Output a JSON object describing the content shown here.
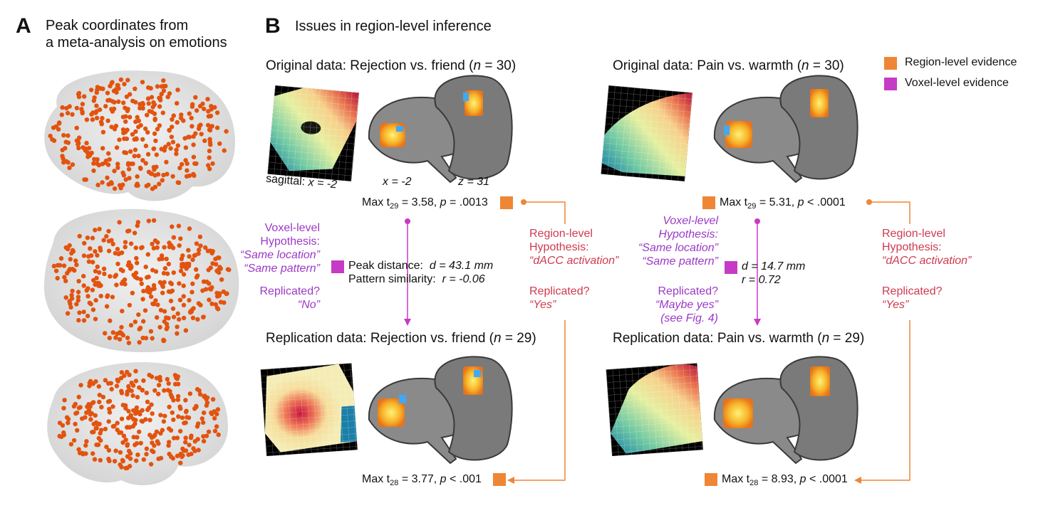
{
  "panel_a": {
    "letter": "A",
    "title_line1": "Peak coordinates from",
    "title_line2": "a meta-analysis on emotions"
  },
  "panel_b": {
    "letter": "B",
    "title": "Issues in region-level inference"
  },
  "legend": {
    "region": "Region-level evidence",
    "voxel": "Voxel-level evidence"
  },
  "left": {
    "original_title_pre": "Original data: Rejection vs. friend (",
    "original_title_n": "n",
    "original_title_post": " = 30)",
    "sagittal_label": "sagittal:",
    "sagittal_value": "x = -2",
    "x_label": "x = -2",
    "z_label": "z = 31",
    "orig_max_pre": "Max t",
    "orig_max_sub": "29",
    "orig_max_mid": " = 3.58, ",
    "orig_max_p": "p",
    "orig_max_post": " = .0013",
    "voxel_hyp_1": "Voxel-level",
    "voxel_hyp_2": "Hypothesis:",
    "voxel_hyp_3": "“Same location”",
    "voxel_hyp_4": "“Same pattern”",
    "replicated_q": "Replicated?",
    "voxel_answer": "“No”",
    "peak_distance_label": "Peak distance:",
    "peak_distance_value": "d = 43.1 mm",
    "pattern_sim_label": "Pattern similarity:",
    "pattern_sim_value": "r = -0.06",
    "region_hyp_1": "Region-level",
    "region_hyp_2": "Hypothesis:",
    "region_hyp_3": "“dACC activation”",
    "region_replicated_q": "Replicated?",
    "region_answer": "“Yes”",
    "replication_title_pre": "Replication data: Rejection vs. friend (",
    "replication_title_n": "n",
    "replication_title_post": " = 29)",
    "rep_max_pre": "Max t",
    "rep_max_sub": "28",
    "rep_max_mid": " = 3.77, ",
    "rep_max_p": "p",
    "rep_max_post": " < .001"
  },
  "right": {
    "original_title_pre": "Original data: Pain vs. warmth (",
    "original_title_n": "n",
    "original_title_post": " = 30)",
    "orig_max_pre": "Max t",
    "orig_max_sub": "29",
    "orig_max_mid": " = 5.31, ",
    "orig_max_p": "p",
    "orig_max_post": " < .0001",
    "voxel_hyp_1": "Voxel-level",
    "voxel_hyp_2": "Hypothesis:",
    "voxel_hyp_3": "“Same location”",
    "voxel_hyp_4": "“Same pattern”",
    "replicated_q": "Replicated?",
    "voxel_answer_1": "“Maybe yes”",
    "voxel_answer_2": "(see Fig. 4)",
    "d_value": "d = 14.7 mm",
    "r_value": "r = 0.72",
    "region_hyp_1": "Region-level",
    "region_hyp_2": "Hypothesis:",
    "region_hyp_3": "“dACC activation”",
    "region_replicated_q": "Replicated?",
    "region_answer": "“Yes”",
    "replication_title_pre": "Replication data: Pain vs. warmth (",
    "replication_title_n": "n",
    "replication_title_post": " = 29)",
    "rep_max_pre": "Max t",
    "rep_max_sub": "28",
    "rep_max_mid": " = 8.93, ",
    "rep_max_p": "p",
    "rep_max_post": " < .0001"
  },
  "colors": {
    "region": "#ee8636",
    "voxel": "#c63bc5",
    "dots": "#e2530f",
    "purple_text": "#9b39c6",
    "red_text": "#cf3a4f"
  }
}
